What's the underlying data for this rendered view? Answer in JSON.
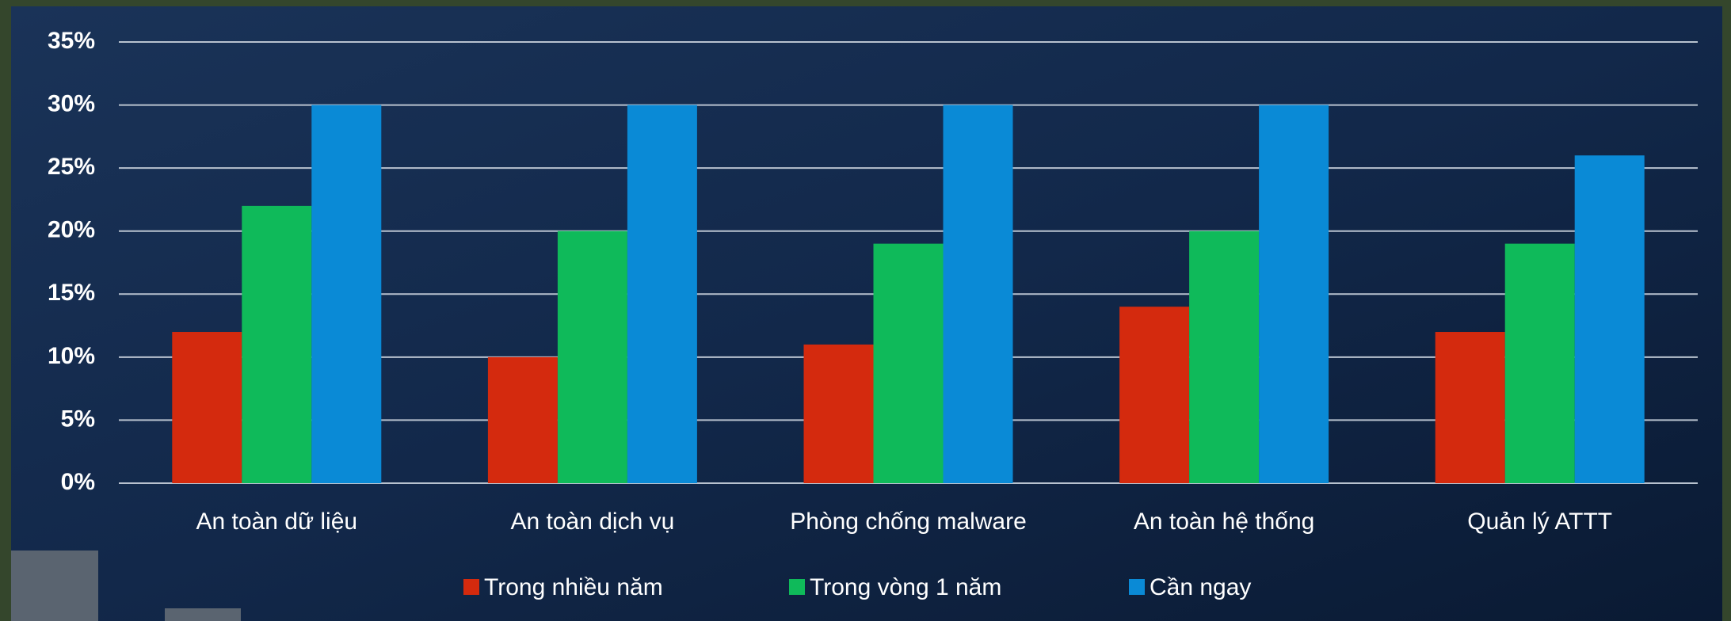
{
  "chart_data": {
    "type": "bar",
    "categories": [
      "An toàn dữ liệu",
      "An toàn dịch vụ",
      "Phòng chống malware",
      "An toàn hệ thống",
      "Quản lý ATTT"
    ],
    "series": [
      {
        "name": "Trong nhiều năm",
        "color": "#d42a0e",
        "values": [
          12,
          10,
          11,
          14,
          12
        ]
      },
      {
        "name": "Trong vòng 1 năm",
        "color": "#0fba5a",
        "values": [
          22,
          20,
          19,
          20,
          19
        ]
      },
      {
        "name": "Cần ngay",
        "color": "#0a8ad6",
        "values": [
          30,
          30,
          30,
          30,
          26
        ]
      }
    ],
    "ylim": [
      0,
      35
    ],
    "yticks": [
      {
        "value": 0,
        "label": "0%"
      },
      {
        "value": 5,
        "label": "5%"
      },
      {
        "value": 10,
        "label": "10%"
      },
      {
        "value": 15,
        "label": "15%"
      },
      {
        "value": 20,
        "label": "20%"
      },
      {
        "value": 25,
        "label": "25%"
      },
      {
        "value": 30,
        "label": "30%"
      },
      {
        "value": 35,
        "label": "35%"
      }
    ],
    "grid": true,
    "legend": "bottom"
  }
}
